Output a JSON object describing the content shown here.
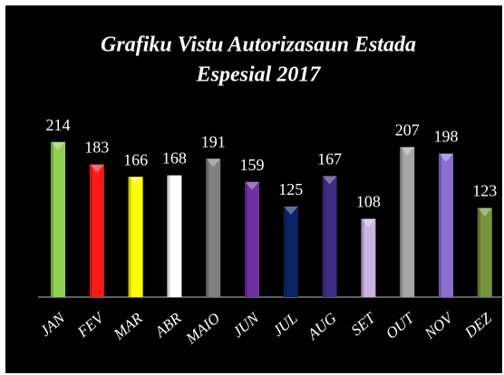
{
  "chart_data": {
    "type": "bar",
    "title": "Grafiku Vistu Autorizasaun Estada",
    "subtitle": "Espesial 2017",
    "categories": [
      "JAN",
      "FEV",
      "MAR",
      "ABR",
      "MAIO",
      "JUN",
      "JUL",
      "AUG",
      "SET",
      "OUT",
      "NOV",
      "DEZ"
    ],
    "values": [
      214,
      183,
      166,
      168,
      191,
      159,
      125,
      167,
      108,
      207,
      198,
      123
    ],
    "colors": [
      "#92d050",
      "#ff1a1a",
      "#ffff00",
      "#ffffff",
      "#7f7f7f",
      "#7030a0",
      "#0a2466",
      "#3d2d85",
      "#ccb4e0",
      "#a6a6a6",
      "#8a6fd0",
      "#77933c"
    ],
    "ylim": [
      0,
      240
    ]
  }
}
